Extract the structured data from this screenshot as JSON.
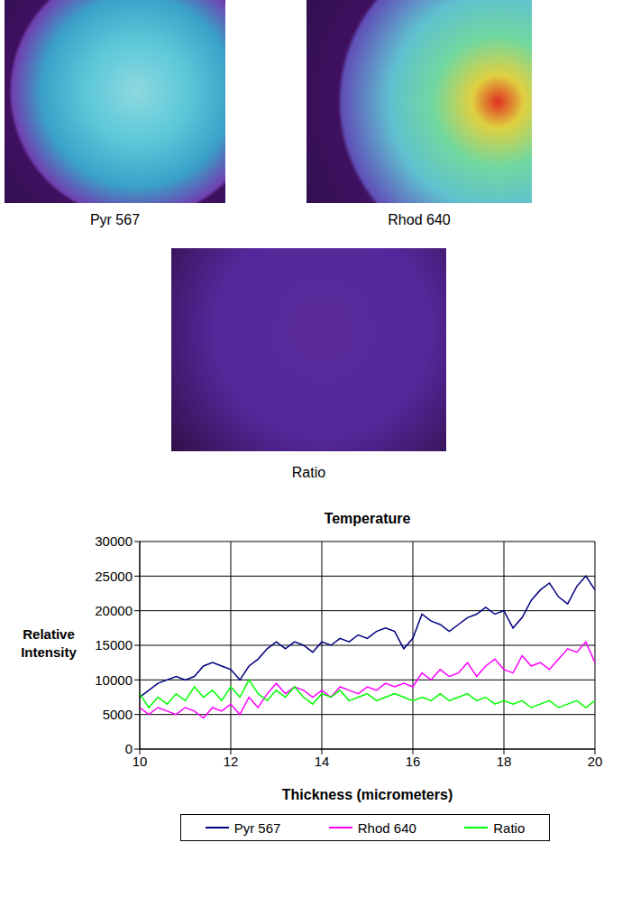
{
  "images": [
    {
      "caption": "Pyr 567"
    },
    {
      "caption": "Rhod 640"
    },
    {
      "caption": "Ratio"
    }
  ],
  "chart_data": {
    "type": "line",
    "title": "Temperature",
    "x_label": "Thickness (micrometers)",
    "y_label": "Relative Intensity",
    "x": [
      10.0,
      10.2,
      10.4,
      10.6,
      10.8,
      11.0,
      11.2,
      11.4,
      11.6,
      11.8,
      12.0,
      12.2,
      12.4,
      12.6,
      12.8,
      13.0,
      13.2,
      13.4,
      13.6,
      13.8,
      14.0,
      14.2,
      14.4,
      14.6,
      14.8,
      15.0,
      15.2,
      15.4,
      15.6,
      15.8,
      16.0,
      16.2,
      16.4,
      16.6,
      16.8,
      17.0,
      17.2,
      17.4,
      17.6,
      17.8,
      18.0,
      18.2,
      18.4,
      18.6,
      18.8,
      19.0,
      19.2,
      19.4,
      19.6,
      19.8,
      20.0
    ],
    "series": [
      {
        "name": "Pyr 567",
        "color": "#000080",
        "values": [
          7500,
          8500,
          9500,
          10000,
          10500,
          10000,
          10500,
          12000,
          12500,
          12000,
          11500,
          10000,
          12000,
          13000,
          14500,
          15500,
          14500,
          15500,
          15000,
          14000,
          15500,
          15000,
          16000,
          15500,
          16500,
          16000,
          17000,
          17500,
          17000,
          14500,
          16000,
          19500,
          18500,
          18000,
          17000,
          18000,
          19000,
          19500,
          20500,
          19500,
          20000,
          17500,
          19000,
          21500,
          23000,
          24000,
          22000,
          21000,
          23500,
          25000,
          23000
        ]
      },
      {
        "name": "Rhod 640",
        "color": "#ff00ff",
        "values": [
          6000,
          5000,
          6000,
          5500,
          5000,
          6000,
          5500,
          4500,
          6000,
          5500,
          6500,
          5000,
          7500,
          6000,
          8000,
          9500,
          8000,
          9000,
          8500,
          7500,
          8500,
          7500,
          9000,
          8500,
          8000,
          9000,
          8500,
          9500,
          9000,
          9500,
          9000,
          11000,
          10000,
          11500,
          10500,
          11000,
          12500,
          10500,
          12000,
          13000,
          11500,
          11000,
          13500,
          12000,
          12500,
          11500,
          13000,
          14500,
          14000,
          15500,
          12500
        ]
      },
      {
        "name": "Ratio",
        "color": "#00ff00",
        "values": [
          8000,
          6000,
          7500,
          6500,
          8000,
          7000,
          9000,
          7500,
          8500,
          7000,
          9000,
          7500,
          10000,
          8000,
          7000,
          8500,
          7500,
          9000,
          7500,
          6500,
          8000,
          7500,
          8500,
          7000,
          7500,
          8000,
          7000,
          7500,
          8000,
          7500,
          7000,
          7500,
          7000,
          8000,
          7000,
          7500,
          8000,
          7000,
          7500,
          6500,
          7000,
          6500,
          7000,
          6000,
          6500,
          7000,
          6000,
          6500,
          7000,
          6000,
          7000
        ]
      }
    ],
    "xlim": [
      10,
      20
    ],
    "xticks": [
      10,
      12,
      14,
      16,
      18,
      20
    ],
    "ylim": [
      0,
      30000
    ],
    "yticks": [
      0,
      5000,
      10000,
      15000,
      20000,
      25000,
      30000
    ],
    "grid": true,
    "legend": "bottom"
  }
}
